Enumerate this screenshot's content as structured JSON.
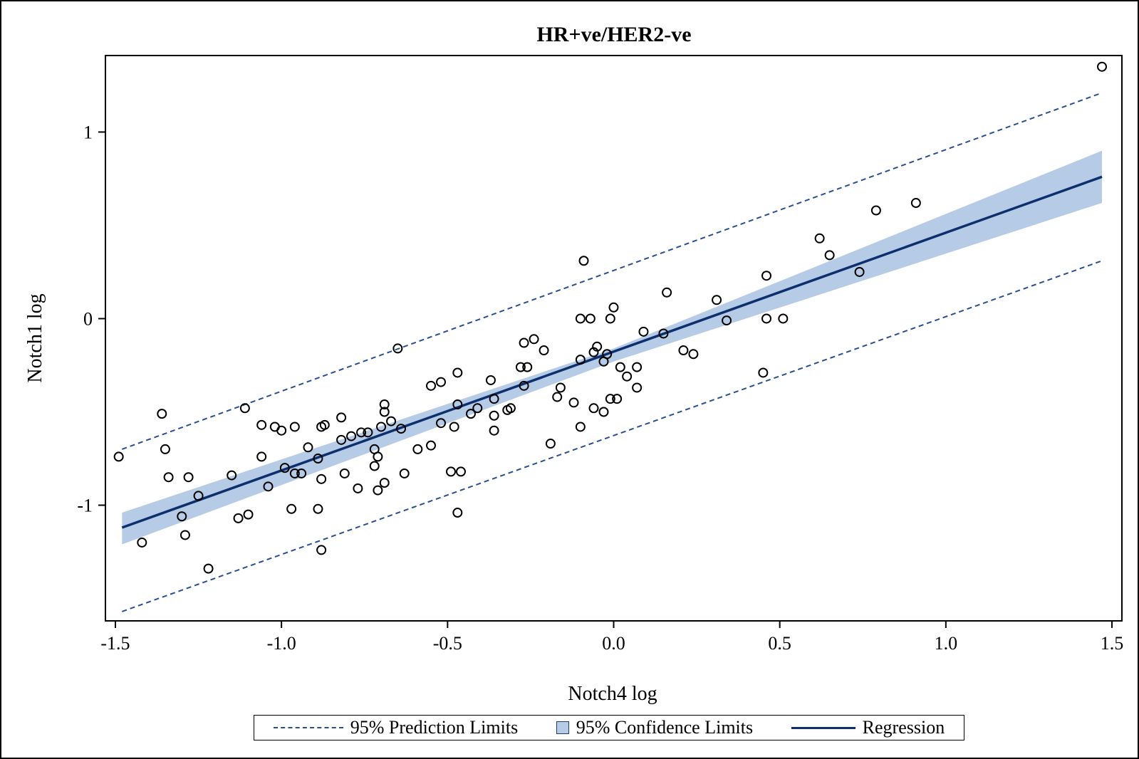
{
  "chart_data": {
    "type": "scatter",
    "title": "HR+ve/HER2-ve",
    "xlabel": "Notch4 log",
    "ylabel": "Notch1 log",
    "xlim": [
      -1.53,
      1.53
    ],
    "ylim": [
      -1.62,
      1.41
    ],
    "xticks": [
      -1.5,
      -1.0,
      -0.5,
      0.0,
      0.5,
      1.0,
      1.5
    ],
    "xtick_labels": [
      "-1.5",
      "-1.0",
      "-0.5",
      "0.0",
      "0.5",
      "1.0",
      "1.5"
    ],
    "yticks": [
      -1,
      0,
      1
    ],
    "ytick_labels": [
      "-1",
      "0",
      "1"
    ],
    "grid": false,
    "legend_position": "bottom",
    "legend": [
      {
        "key": "prediction",
        "label": "95% Prediction Limits"
      },
      {
        "key": "confidence",
        "label": "95% Confidence Limits"
      },
      {
        "key": "regression",
        "label": "Regression"
      }
    ],
    "regression": {
      "x": [
        -1.48,
        1.47
      ],
      "y": [
        -1.12,
        0.76
      ]
    },
    "confidence_band": {
      "x": [
        -1.48,
        0.0,
        1.47
      ],
      "upper": [
        -1.04,
        -0.16,
        0.9
      ],
      "lower": [
        -1.21,
        -0.23,
        0.62
      ]
    },
    "prediction_limits": {
      "x": [
        -1.48,
        1.47
      ],
      "upper": [
        -0.7,
        1.21
      ],
      "lower": [
        -1.57,
        0.31
      ]
    },
    "points": [
      [
        -1.49,
        -0.74
      ],
      [
        -1.42,
        -1.2
      ],
      [
        -1.36,
        -0.51
      ],
      [
        -1.35,
        -0.7
      ],
      [
        -1.34,
        -0.85
      ],
      [
        -1.3,
        -1.06
      ],
      [
        -1.29,
        -1.16
      ],
      [
        -1.28,
        -0.85
      ],
      [
        -1.25,
        -0.95
      ],
      [
        -1.22,
        -1.34
      ],
      [
        -1.15,
        -0.84
      ],
      [
        -1.13,
        -1.07
      ],
      [
        -1.11,
        -0.48
      ],
      [
        -1.1,
        -1.05
      ],
      [
        -1.06,
        -0.57
      ],
      [
        -1.06,
        -0.74
      ],
      [
        -1.04,
        -0.9
      ],
      [
        -1.02,
        -0.58
      ],
      [
        -1.0,
        -0.6
      ],
      [
        -0.99,
        -0.8
      ],
      [
        -0.97,
        -1.02
      ],
      [
        -0.96,
        -0.58
      ],
      [
        -0.96,
        -0.83
      ],
      [
        -0.94,
        -0.83
      ],
      [
        -0.92,
        -0.69
      ],
      [
        -0.89,
        -1.02
      ],
      [
        -0.89,
        -0.75
      ],
      [
        -0.88,
        -0.86
      ],
      [
        -0.88,
        -0.58
      ],
      [
        -0.88,
        -1.24
      ],
      [
        -0.87,
        -0.57
      ],
      [
        -0.82,
        -0.65
      ],
      [
        -0.82,
        -0.53
      ],
      [
        -0.81,
        -0.83
      ],
      [
        -0.79,
        -0.63
      ],
      [
        -0.77,
        -0.91
      ],
      [
        -0.76,
        -0.61
      ],
      [
        -0.74,
        -0.61
      ],
      [
        -0.72,
        -0.7
      ],
      [
        -0.72,
        -0.79
      ],
      [
        -0.71,
        -0.74
      ],
      [
        -0.71,
        -0.92
      ],
      [
        -0.7,
        -0.58
      ],
      [
        -0.69,
        -0.88
      ],
      [
        -0.69,
        -0.46
      ],
      [
        -0.69,
        -0.5
      ],
      [
        -0.67,
        -0.55
      ],
      [
        -0.65,
        -0.16
      ],
      [
        -0.64,
        -0.59
      ],
      [
        -0.63,
        -0.83
      ],
      [
        -0.59,
        -0.7
      ],
      [
        -0.55,
        -0.36
      ],
      [
        -0.55,
        -0.68
      ],
      [
        -0.52,
        -0.34
      ],
      [
        -0.52,
        -0.56
      ],
      [
        -0.49,
        -0.82
      ],
      [
        -0.48,
        -0.58
      ],
      [
        -0.47,
        -0.29
      ],
      [
        -0.47,
        -0.46
      ],
      [
        -0.47,
        -1.04
      ],
      [
        -0.46,
        -0.82
      ],
      [
        -0.43,
        -0.51
      ],
      [
        -0.41,
        -0.48
      ],
      [
        -0.37,
        -0.33
      ],
      [
        -0.36,
        -0.43
      ],
      [
        -0.36,
        -0.52
      ],
      [
        -0.36,
        -0.6
      ],
      [
        -0.32,
        -0.49
      ],
      [
        -0.31,
        -0.48
      ],
      [
        -0.28,
        -0.26
      ],
      [
        -0.27,
        -0.13
      ],
      [
        -0.27,
        -0.36
      ],
      [
        -0.26,
        -0.26
      ],
      [
        -0.24,
        -0.11
      ],
      [
        -0.21,
        -0.17
      ],
      [
        -0.19,
        -0.67
      ],
      [
        -0.17,
        -0.42
      ],
      [
        -0.16,
        -0.37
      ],
      [
        -0.12,
        -0.45
      ],
      [
        -0.1,
        -0.22
      ],
      [
        -0.1,
        -0.58
      ],
      [
        -0.1,
        0.0
      ],
      [
        -0.09,
        0.31
      ],
      [
        -0.07,
        0.0
      ],
      [
        -0.06,
        -0.18
      ],
      [
        -0.06,
        -0.48
      ],
      [
        -0.05,
        -0.15
      ],
      [
        -0.03,
        -0.23
      ],
      [
        -0.03,
        -0.5
      ],
      [
        -0.02,
        -0.19
      ],
      [
        -0.01,
        -0.43
      ],
      [
        -0.01,
        0.0
      ],
      [
        0.0,
        0.06
      ],
      [
        0.01,
        -0.43
      ],
      [
        0.02,
        -0.26
      ],
      [
        0.04,
        -0.31
      ],
      [
        0.07,
        -0.37
      ],
      [
        0.07,
        -0.26
      ],
      [
        0.09,
        -0.07
      ],
      [
        0.15,
        -0.08
      ],
      [
        0.16,
        0.14
      ],
      [
        0.21,
        -0.17
      ],
      [
        0.24,
        -0.19
      ],
      [
        0.31,
        0.1
      ],
      [
        0.34,
        -0.01
      ],
      [
        0.45,
        -0.29
      ],
      [
        0.46,
        0.0
      ],
      [
        0.46,
        0.23
      ],
      [
        0.51,
        0.0
      ],
      [
        0.62,
        0.43
      ],
      [
        0.65,
        0.34
      ],
      [
        0.74,
        0.25
      ],
      [
        0.79,
        0.58
      ],
      [
        0.91,
        0.62
      ],
      [
        1.47,
        1.35
      ]
    ]
  }
}
